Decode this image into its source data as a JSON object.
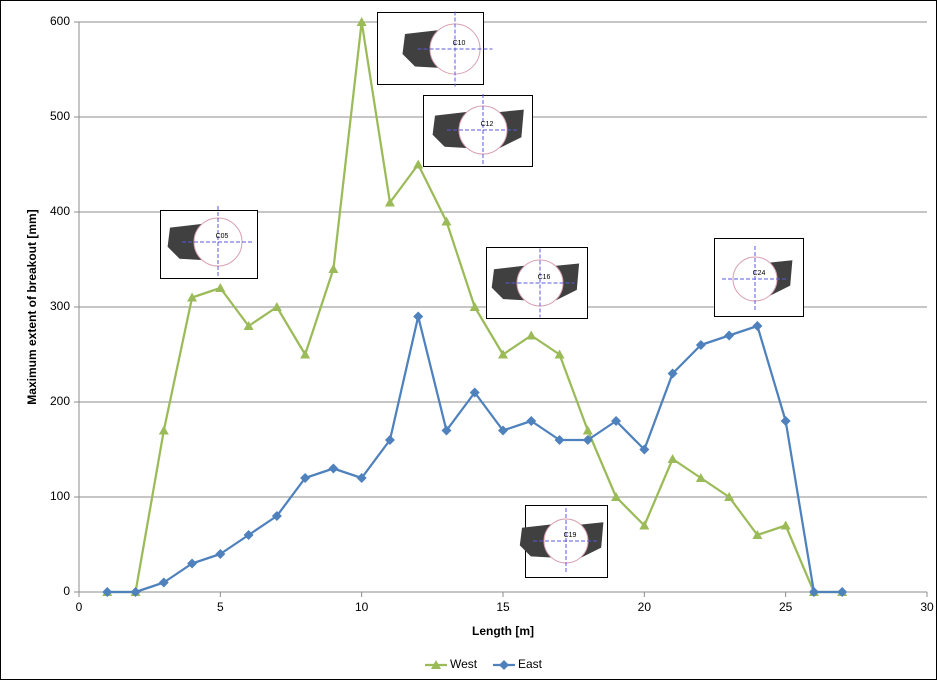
{
  "chart_data": {
    "type": "line",
    "xlabel": "Length [m]",
    "ylabel": "Maximum extent of breakout [mm]",
    "x": [
      1,
      2,
      3,
      4,
      5,
      6,
      7,
      8,
      9,
      10,
      11,
      12,
      13,
      14,
      15,
      16,
      17,
      18,
      19,
      20,
      21,
      22,
      23,
      24,
      25,
      26,
      27
    ],
    "series": [
      {
        "name": "West",
        "color": "#9bbb59",
        "marker": "triangle",
        "values": [
          0,
          0,
          170,
          310,
          320,
          280,
          300,
          250,
          340,
          600,
          410,
          450,
          390,
          300,
          250,
          270,
          250,
          170,
          100,
          70,
          140,
          120,
          100,
          60,
          70,
          0,
          0
        ]
      },
      {
        "name": "East",
        "color": "#4f81bd",
        "marker": "diamond",
        "values": [
          0,
          0,
          10,
          30,
          40,
          60,
          80,
          120,
          130,
          120,
          160,
          290,
          170,
          210,
          170,
          180,
          160,
          160,
          180,
          150,
          230,
          260,
          270,
          280,
          180,
          0,
          0
        ]
      }
    ],
    "xlim": [
      0,
      30
    ],
    "xticks": [
      0,
      5,
      10,
      15,
      20,
      25,
      30
    ],
    "ylim": [
      0,
      600
    ],
    "yticks": [
      0,
      100,
      200,
      300,
      400,
      500,
      600
    ],
    "grid": true,
    "legend": "bottom",
    "annotations": [
      "C05",
      "C10",
      "C12",
      "C16",
      "C24",
      "C19"
    ]
  }
}
